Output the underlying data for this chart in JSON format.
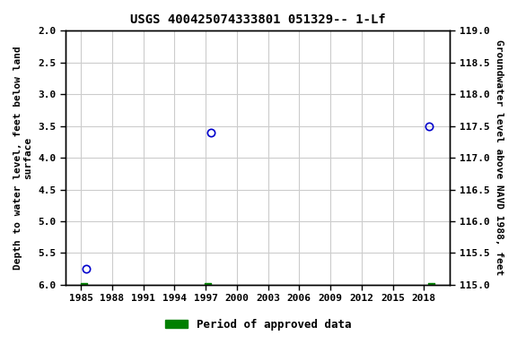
{
  "title": "USGS 400425074333801 051329-- 1-Lf",
  "data_points": [
    {
      "year": 1985.5,
      "depth": 5.75
    },
    {
      "year": 1997.5,
      "depth": 3.6
    },
    {
      "year": 2018.5,
      "depth": 3.5
    }
  ],
  "approved_periods": [
    {
      "start": 1985.0,
      "end": 1985.6
    },
    {
      "start": 1996.9,
      "end": 1997.5
    },
    {
      "start": 2018.4,
      "end": 2019.0
    }
  ],
  "xlim": [
    1983.5,
    2020.5
  ],
  "xticks": [
    1985,
    1988,
    1991,
    1994,
    1997,
    2000,
    2003,
    2006,
    2009,
    2012,
    2015,
    2018
  ],
  "ylim_left_top": 2.0,
  "ylim_left_bottom": 6.0,
  "ylim_right_top": 119.0,
  "ylim_right_bottom": 115.0,
  "yticks_left": [
    2.0,
    2.5,
    3.0,
    3.5,
    4.0,
    4.5,
    5.0,
    5.5,
    6.0
  ],
  "yticks_right": [
    119.0,
    118.5,
    118.0,
    117.5,
    117.0,
    116.5,
    116.0,
    115.5,
    115.0
  ],
  "ylabel_left": "Depth to water level, feet below land\nsurface",
  "ylabel_right": "Groundwater level above NAVD 1988, feet",
  "marker_color": "#0000cc",
  "approved_color": "#008000",
  "bg_color": "#ffffff",
  "grid_color": "#cccccc",
  "legend_label": "Period of approved data",
  "title_fontsize": 10,
  "label_fontsize": 8,
  "tick_fontsize": 8
}
